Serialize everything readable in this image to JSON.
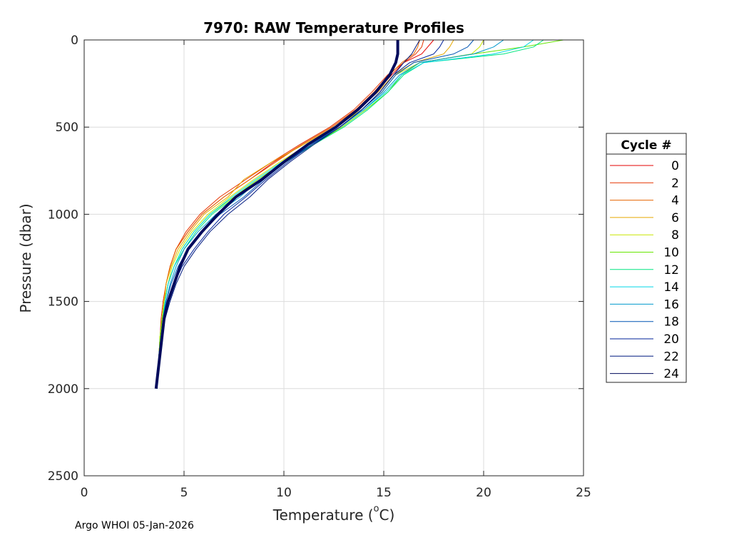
{
  "chart_data": {
    "type": "line",
    "title": "7970: RAW Temperature Profiles",
    "xlabel": "Temperature (",
    "xlabel_degree": "o",
    "xlabel_unit": "C)",
    "ylabel": "Pressure (dbar)",
    "xlim": [
      0,
      25
    ],
    "ylim": [
      0,
      2500
    ],
    "y_reversed": true,
    "grid": true,
    "xticks": [
      "0",
      "5",
      "10",
      "15",
      "20",
      "25"
    ],
    "yticks": [
      "0",
      "500",
      "1000",
      "1500",
      "2000",
      "2500"
    ],
    "legend": {
      "title": "Cycle #",
      "placement": "right",
      "entries": [
        "0",
        "2",
        "4",
        "6",
        "8",
        "10",
        "12",
        "14",
        "16",
        "18",
        "20",
        "22",
        "24"
      ]
    },
    "colors": [
      "#e60000",
      "#e63300",
      "#e66600",
      "#e6a800",
      "#c8e600",
      "#66e600",
      "#00e680",
      "#00d8e6",
      "#0099cc",
      "#0055b3",
      "#00229a",
      "#001a80",
      "#000a5c"
    ],
    "pressure_levels": [
      0,
      40,
      80,
      130,
      200,
      300,
      400,
      500,
      600,
      700,
      800,
      900,
      1000,
      1100,
      1200,
      1300,
      1400,
      1500,
      1600,
      1700,
      1800,
      1900,
      2000
    ],
    "series": [
      {
        "name": "0",
        "values": [
          17.5,
          17.2,
          16.9,
          16.0,
          15.4,
          14.6,
          13.6,
          12.4,
          10.9,
          9.5,
          8.3,
          7.0,
          5.9,
          5.2,
          4.6,
          4.3,
          4.1,
          4.0,
          3.9,
          3.8,
          3.75,
          3.7,
          3.65
        ]
      },
      {
        "name": "2",
        "values": [
          17.0,
          16.9,
          16.6,
          16.0,
          15.2,
          14.4,
          13.5,
          12.3,
          10.8,
          9.4,
          8.1,
          6.8,
          5.8,
          5.1,
          4.6,
          4.3,
          4.1,
          3.95,
          3.85,
          3.8,
          3.75,
          3.7,
          3.65
        ]
      },
      {
        "name": "4",
        "values": [
          16.8,
          16.7,
          16.5,
          15.9,
          15.3,
          14.5,
          13.6,
          12.4,
          10.9,
          9.6,
          8.3,
          7.0,
          5.9,
          5.2,
          4.6,
          4.3,
          4.1,
          4.0,
          3.9,
          3.8,
          3.75,
          3.7,
          3.65
        ]
      },
      {
        "name": "6",
        "values": [
          18.5,
          18.3,
          18.0,
          16.5,
          15.5,
          14.7,
          13.7,
          12.5,
          11.0,
          9.4,
          8.0,
          7.2,
          6.0,
          5.3,
          4.7,
          4.35,
          4.1,
          4.0,
          3.9,
          3.8,
          3.75,
          3.7,
          3.65
        ]
      },
      {
        "name": "8",
        "values": [
          20.0,
          19.8,
          19.4,
          16.8,
          15.6,
          14.9,
          13.9,
          12.6,
          11.2,
          9.8,
          8.5,
          7.3,
          6.2,
          5.4,
          4.8,
          4.4,
          4.2,
          4.0,
          3.9,
          3.8,
          3.75,
          3.7,
          3.65
        ]
      },
      {
        "name": "10",
        "values": [
          24.0,
          22.0,
          19.5,
          16.8,
          15.9,
          15.2,
          14.1,
          12.9,
          11.5,
          10.0,
          8.7,
          7.5,
          6.3,
          5.5,
          4.9,
          4.5,
          4.2,
          4.05,
          3.9,
          3.8,
          3.75,
          3.7,
          3.65
        ]
      },
      {
        "name": "12",
        "values": [
          23.0,
          22.5,
          21.0,
          17.0,
          16.0,
          15.2,
          14.2,
          13.0,
          11.5,
          10.1,
          8.8,
          7.6,
          6.4,
          5.6,
          5.0,
          4.5,
          4.2,
          4.05,
          3.95,
          3.85,
          3.75,
          3.7,
          3.65
        ]
      },
      {
        "name": "14",
        "values": [
          22.5,
          22.0,
          20.5,
          17.0,
          15.9,
          15.1,
          14.0,
          12.8,
          11.3,
          9.9,
          8.6,
          7.4,
          6.3,
          5.5,
          4.9,
          4.5,
          4.2,
          4.05,
          3.95,
          3.85,
          3.75,
          3.7,
          3.65
        ]
      },
      {
        "name": "16",
        "values": [
          21.0,
          20.5,
          19.5,
          16.8,
          15.8,
          15.0,
          14.0,
          12.8,
          11.4,
          10.0,
          8.8,
          7.8,
          6.6,
          5.7,
          5.0,
          4.6,
          4.3,
          4.1,
          3.95,
          3.85,
          3.75,
          3.7,
          3.65
        ]
      },
      {
        "name": "18",
        "values": [
          19.5,
          19.2,
          18.5,
          16.5,
          15.6,
          14.9,
          13.9,
          12.8,
          11.4,
          10.1,
          9.0,
          8.0,
          6.8,
          5.9,
          5.2,
          4.7,
          4.35,
          4.1,
          3.95,
          3.85,
          3.75,
          3.7,
          3.65
        ]
      },
      {
        "name": "20",
        "values": [
          18.0,
          17.8,
          17.5,
          16.3,
          15.5,
          14.8,
          13.9,
          12.8,
          11.4,
          10.2,
          9.1,
          8.1,
          7.0,
          6.2,
          5.5,
          4.9,
          4.5,
          4.2,
          4.0,
          3.9,
          3.8,
          3.7,
          3.65
        ]
      },
      {
        "name": "22",
        "values": [
          16.8,
          16.6,
          16.4,
          16.0,
          15.5,
          14.8,
          13.9,
          12.8,
          11.5,
          10.3,
          9.2,
          8.3,
          7.2,
          6.3,
          5.6,
          5.0,
          4.6,
          4.3,
          4.05,
          3.9,
          3.8,
          3.7,
          3.65
        ]
      },
      {
        "name": "24",
        "values": [
          15.7,
          15.7,
          15.7,
          15.6,
          15.3,
          14.6,
          13.7,
          12.6,
          11.2,
          10.0,
          8.9,
          7.6,
          6.7,
          5.9,
          5.2,
          4.8,
          4.5,
          4.2,
          4.0,
          3.9,
          3.8,
          3.7,
          3.6
        ]
      }
    ]
  },
  "footer": {
    "credit": "Argo WHOI 05-Jan-2026"
  }
}
